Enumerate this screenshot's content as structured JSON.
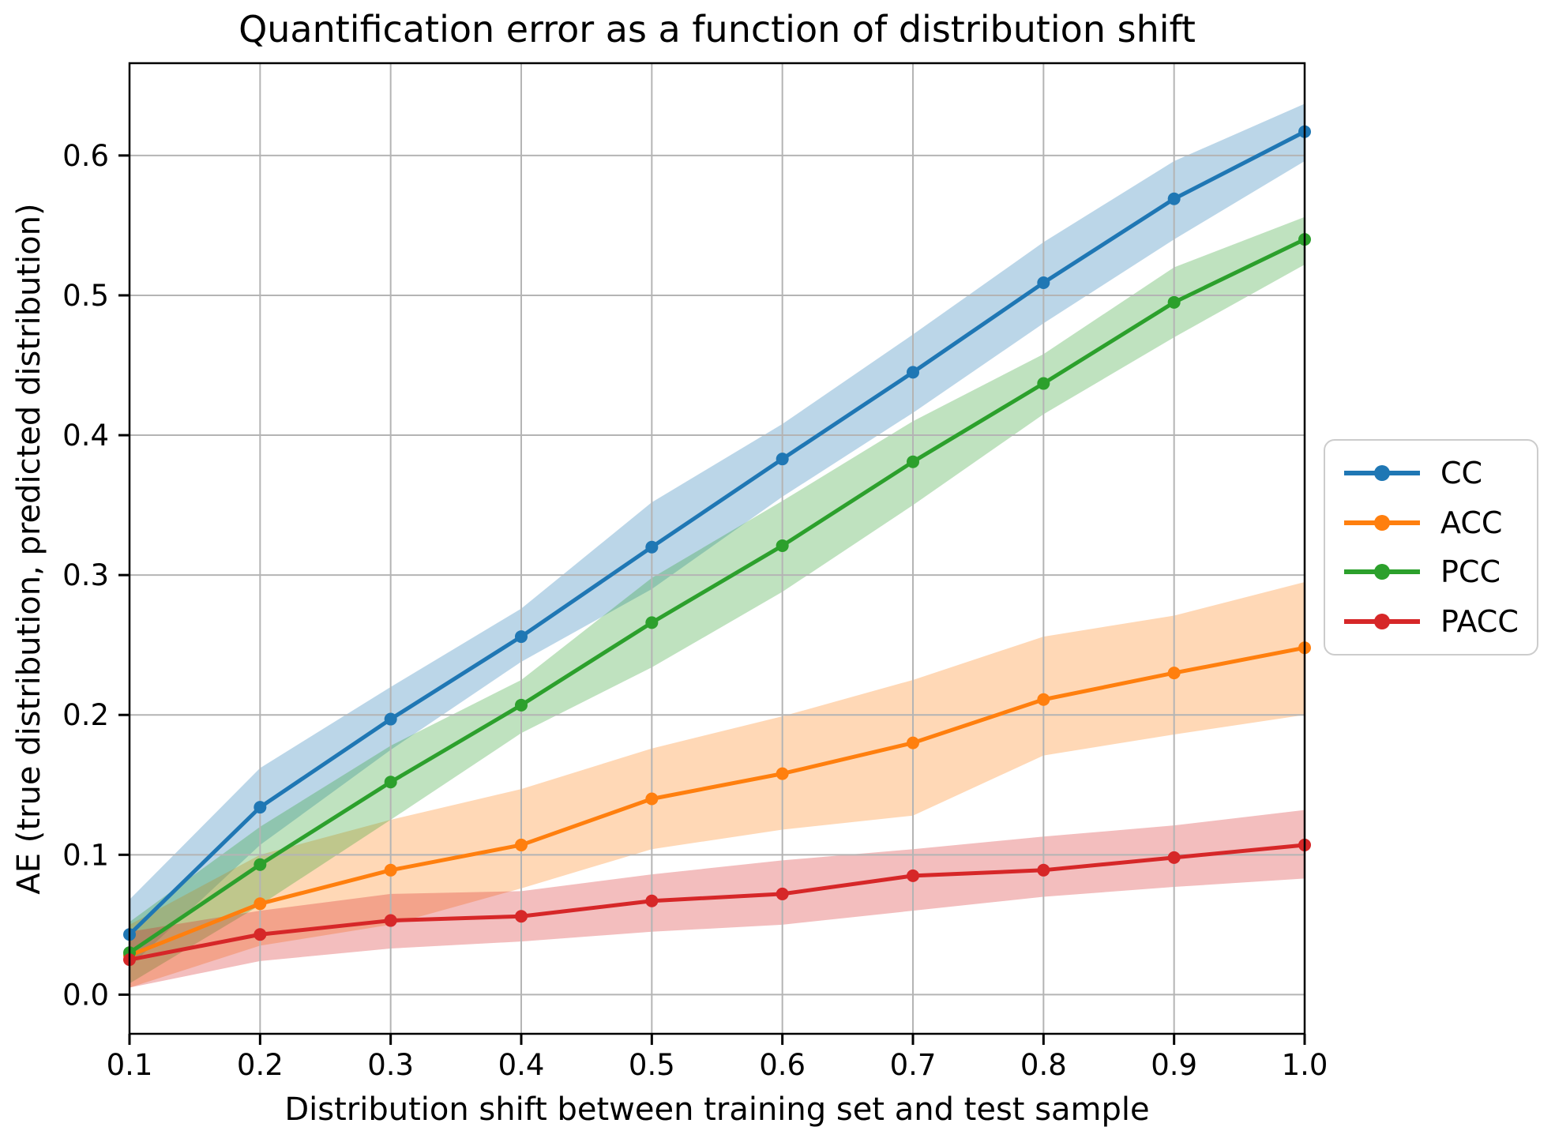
{
  "chart_data": {
    "type": "line",
    "title": "Quantification error as a function of distribution shift",
    "xlabel": "Distribution shift between training set and test sample",
    "ylabel": "AE (true distribution, predicted distribution)",
    "x": [
      0.1,
      0.2,
      0.3,
      0.4,
      0.5,
      0.6,
      0.7,
      0.8,
      0.9,
      1.0
    ],
    "x_tick_labels": [
      "0.1",
      "0.2",
      "0.3",
      "0.4",
      "0.5",
      "0.6",
      "0.7",
      "0.8",
      "0.9",
      "1.0"
    ],
    "y_ticks": [
      0.0,
      0.1,
      0.2,
      0.3,
      0.4,
      0.5,
      0.6
    ],
    "y_tick_labels": [
      "0.0",
      "0.1",
      "0.2",
      "0.3",
      "0.4",
      "0.5",
      "0.6"
    ],
    "xlim": [
      0.1,
      1.0
    ],
    "ylim": [
      -0.028,
      0.666
    ],
    "grid": true,
    "grid_color": "#b4b4b4",
    "band_alpha": 0.3,
    "legend_position": "outside-right",
    "series": [
      {
        "name": "CC",
        "color": "#1f77b4",
        "values": [
          0.043,
          0.134,
          0.197,
          0.256,
          0.32,
          0.383,
          0.445,
          0.509,
          0.569,
          0.617
        ],
        "band_lower": [
          0.02,
          0.107,
          0.175,
          0.238,
          0.29,
          0.356,
          0.416,
          0.48,
          0.54,
          0.596
        ],
        "band_upper": [
          0.068,
          0.162,
          0.22,
          0.276,
          0.352,
          0.408,
          0.472,
          0.538,
          0.596,
          0.637
        ]
      },
      {
        "name": "ACC",
        "color": "#ff7f0e",
        "values": [
          0.028,
          0.065,
          0.089,
          0.107,
          0.14,
          0.158,
          0.18,
          0.211,
          0.23,
          0.248
        ],
        "band_lower": [
          0.005,
          0.035,
          0.05,
          0.076,
          0.104,
          0.118,
          0.128,
          0.171,
          0.186,
          0.2
        ],
        "band_upper": [
          0.05,
          0.1,
          0.125,
          0.147,
          0.176,
          0.199,
          0.225,
          0.256,
          0.271,
          0.295
        ]
      },
      {
        "name": "PCC",
        "color": "#2ca02c",
        "values": [
          0.03,
          0.093,
          0.152,
          0.207,
          0.266,
          0.321,
          0.381,
          0.437,
          0.495,
          0.54
        ],
        "band_lower": [
          0.008,
          0.064,
          0.125,
          0.187,
          0.234,
          0.288,
          0.35,
          0.415,
          0.47,
          0.522
        ],
        "band_upper": [
          0.052,
          0.12,
          0.178,
          0.225,
          0.298,
          0.353,
          0.41,
          0.458,
          0.52,
          0.556
        ]
      },
      {
        "name": "PACC",
        "color": "#d62728",
        "values": [
          0.025,
          0.043,
          0.053,
          0.056,
          0.067,
          0.072,
          0.085,
          0.089,
          0.098,
          0.107
        ],
        "band_lower": [
          0.005,
          0.024,
          0.033,
          0.038,
          0.045,
          0.05,
          0.06,
          0.07,
          0.077,
          0.083
        ],
        "band_upper": [
          0.045,
          0.06,
          0.072,
          0.074,
          0.086,
          0.096,
          0.104,
          0.113,
          0.121,
          0.132
        ]
      }
    ]
  }
}
